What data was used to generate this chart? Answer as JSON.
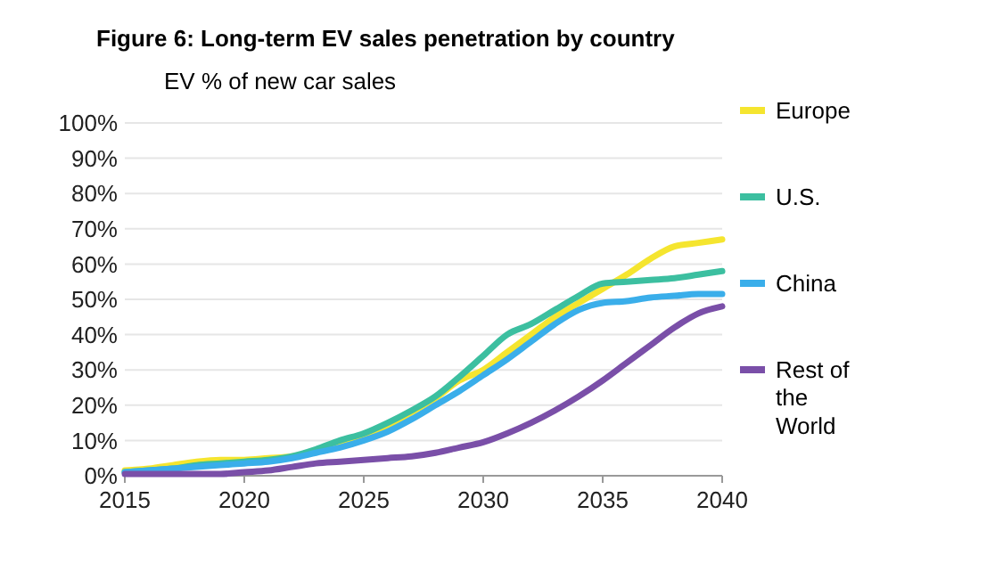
{
  "chart_data": {
    "type": "line",
    "title": "Figure 6:  Long-term EV sales penetration by country",
    "ylabel": "EV % of new car sales",
    "x": [
      2015,
      2016,
      2017,
      2018,
      2019,
      2020,
      2021,
      2022,
      2023,
      2024,
      2025,
      2026,
      2027,
      2028,
      2029,
      2030,
      2031,
      2032,
      2033,
      2034,
      2035,
      2036,
      2037,
      2038,
      2039,
      2040
    ],
    "xlim": [
      2015,
      2040
    ],
    "xticks": [
      2015,
      2020,
      2025,
      2030,
      2035,
      2040
    ],
    "ylim": [
      0,
      100
    ],
    "yticks": [
      {
        "value": 0,
        "label": "0%"
      },
      {
        "value": 10,
        "label": "10%"
      },
      {
        "value": 20,
        "label": "20%"
      },
      {
        "value": 30,
        "label": "30%"
      },
      {
        "value": 40,
        "label": "40%"
      },
      {
        "value": 50,
        "label": "50%"
      },
      {
        "value": 60,
        "label": "60%"
      },
      {
        "value": 70,
        "label": "70%"
      },
      {
        "value": 80,
        "label": "80%"
      },
      {
        "value": 90,
        "label": "90%"
      },
      {
        "value": 100,
        "label": "100%"
      }
    ],
    "grid": "y",
    "legend": "right",
    "marker": "none",
    "line_style": "solid",
    "series": [
      {
        "name": "Europe",
        "color": "#f5e52f",
        "values": [
          1.5,
          2,
          3,
          4,
          4.5,
          4.5,
          5,
          5.5,
          7,
          9,
          11,
          14,
          18,
          22,
          27,
          30,
          35,
          40,
          45,
          49,
          53,
          57,
          61.5,
          65,
          66,
          67
        ]
      },
      {
        "name": "U.S.",
        "color": "#3cbfa0",
        "values": [
          1,
          1.5,
          2,
          3,
          3.5,
          4,
          4.5,
          5.5,
          7.5,
          10,
          12,
          15,
          18.5,
          22.5,
          28,
          34,
          40,
          43,
          47,
          51,
          54.5,
          55,
          55.5,
          56,
          57,
          58
        ]
      },
      {
        "name": "China",
        "color": "#3aaeea",
        "values": [
          1,
          1.5,
          2,
          2.5,
          3,
          3.5,
          4,
          5,
          6.5,
          8,
          10,
          12.5,
          16,
          20,
          24,
          28.5,
          33,
          38,
          43,
          47,
          49,
          49.5,
          50.5,
          51,
          51.5,
          51.5
        ]
      },
      {
        "name": "Rest of the World",
        "color": "#7a4fa8",
        "values": [
          0.5,
          0.5,
          0.5,
          0.5,
          0.5,
          1,
          1.5,
          2.5,
          3.5,
          4,
          4.5,
          5,
          5.5,
          6.5,
          8,
          9.5,
          12,
          15,
          18.5,
          22.5,
          27,
          32,
          37,
          42,
          46,
          48
        ]
      }
    ]
  }
}
